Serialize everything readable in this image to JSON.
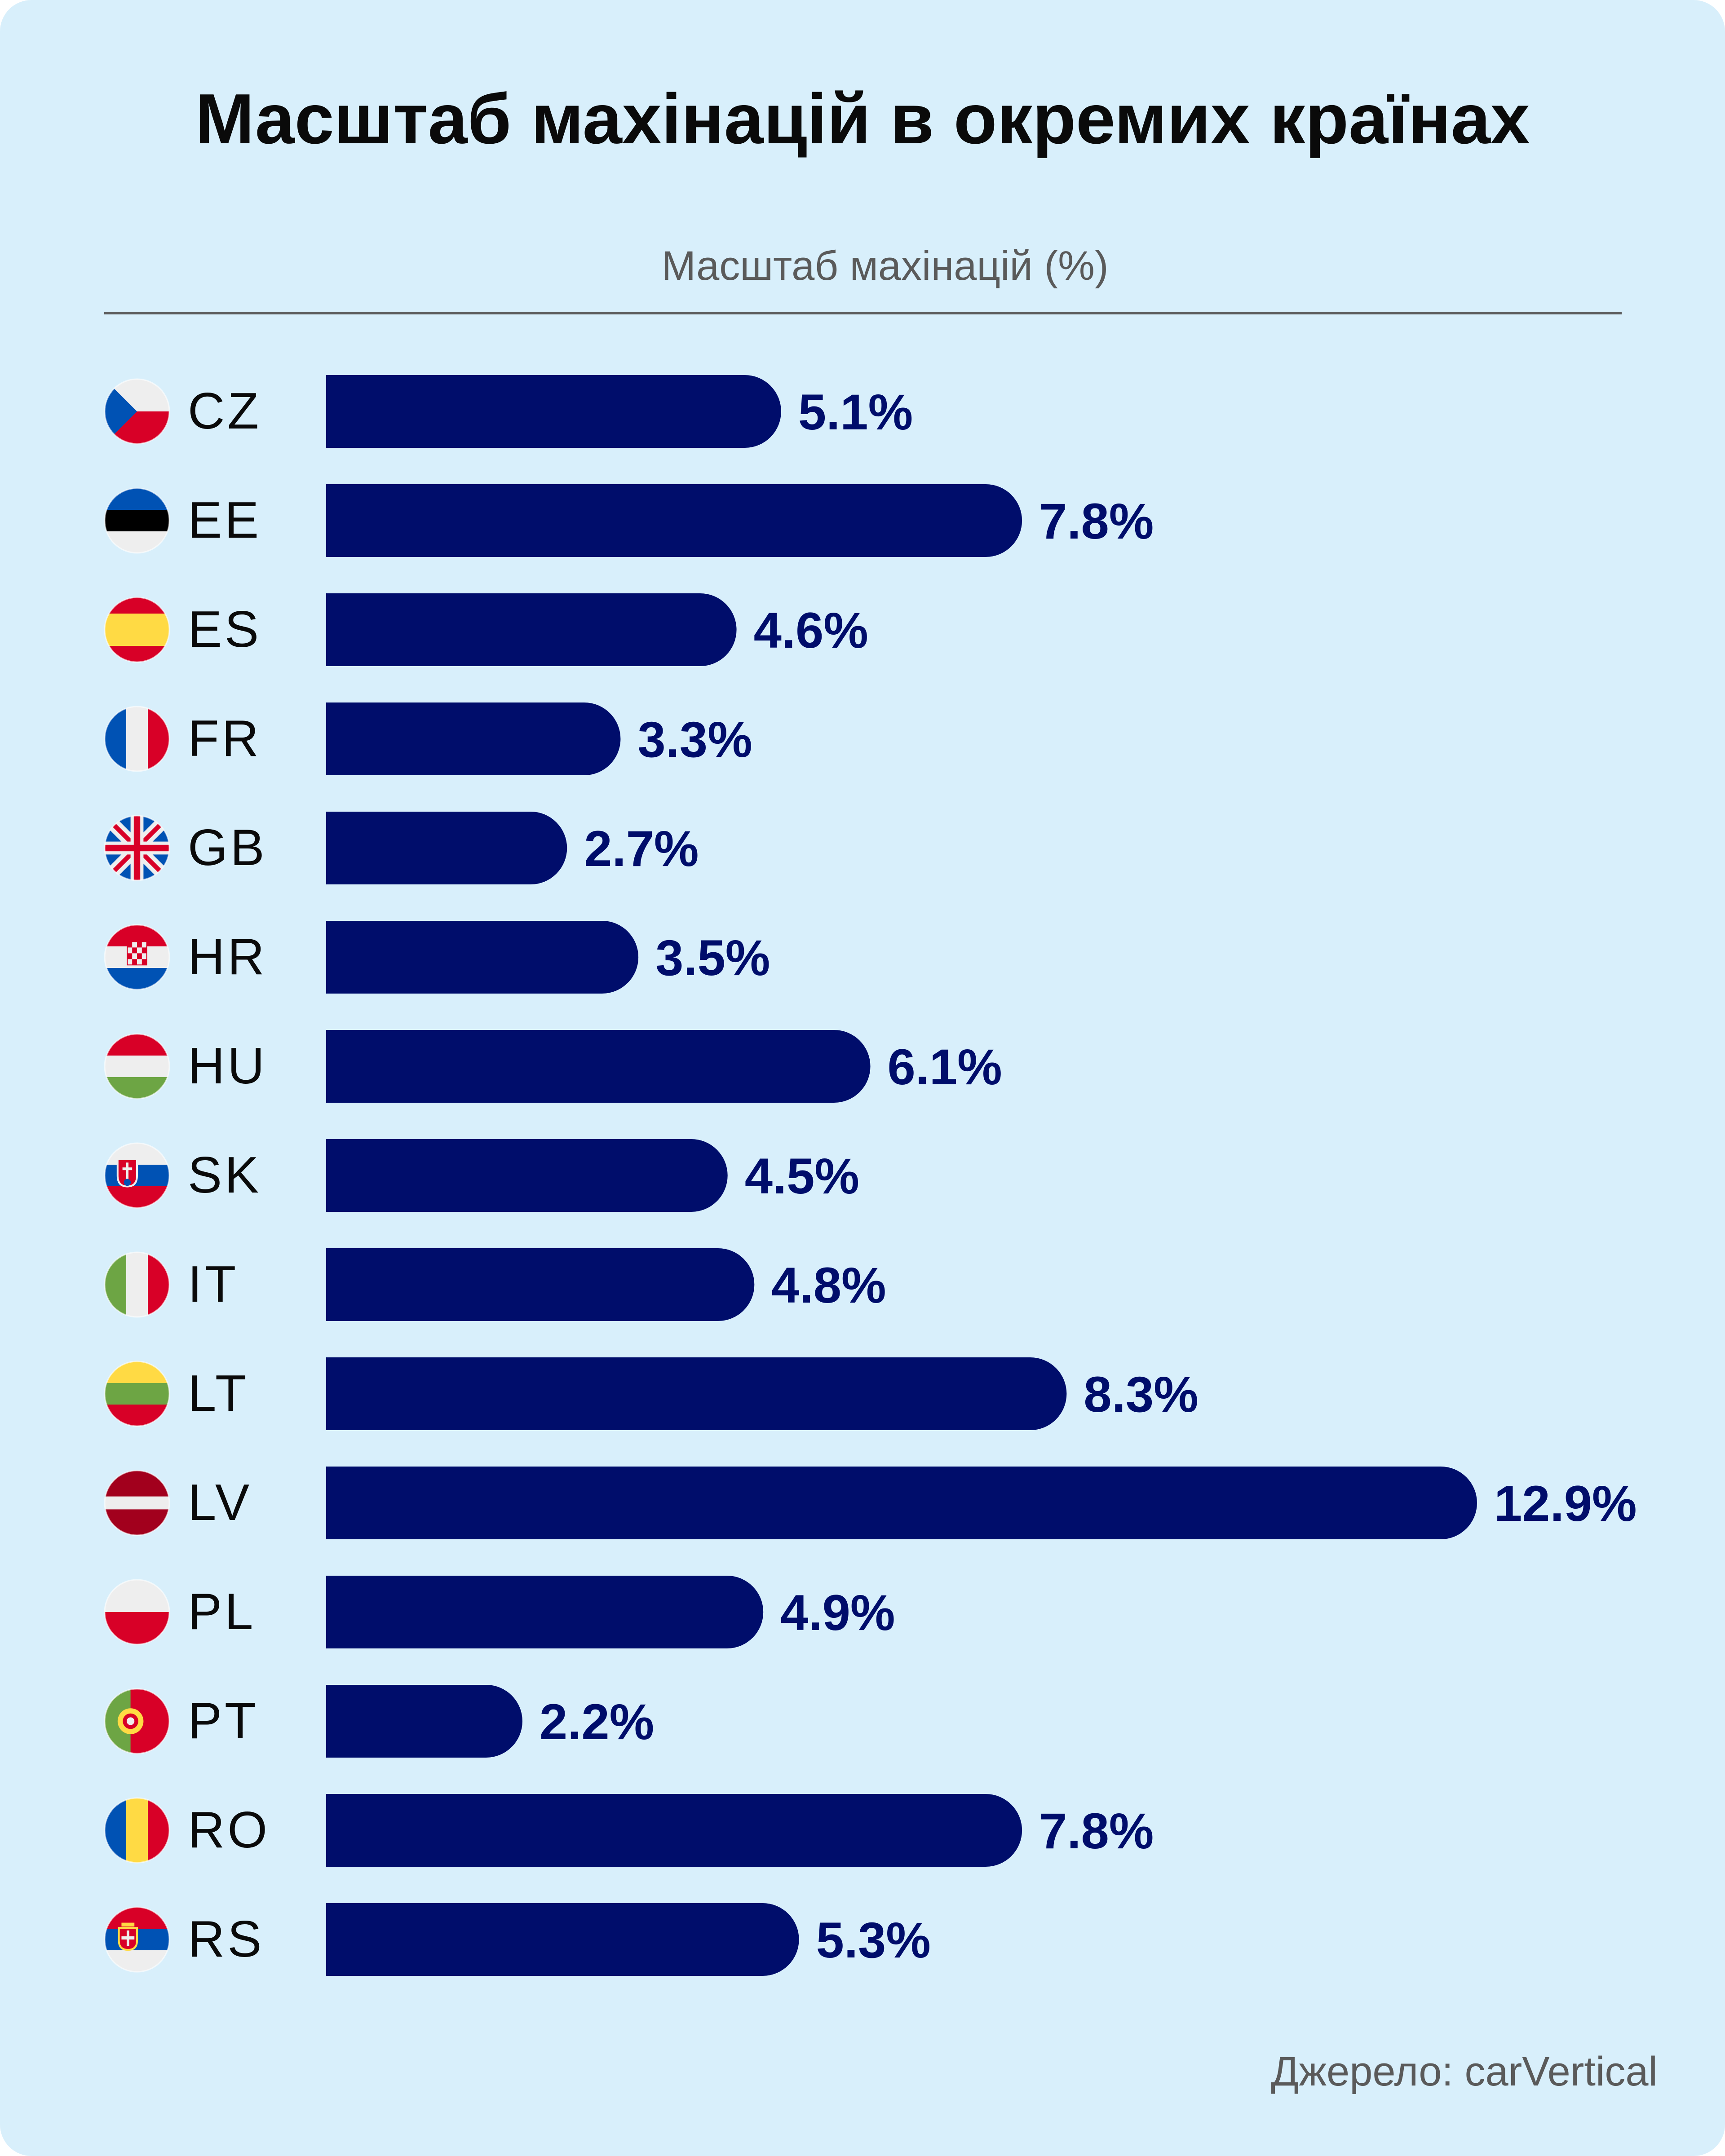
{
  "title": "Масштаб махінацій в окремих країнах",
  "source": "Джерело: carVertical",
  "chart_data": {
    "type": "bar",
    "orientation": "horizontal",
    "title": "Масштаб махінацій в окремих країнах",
    "xlabel": "Масштаб махінацій (%)",
    "ylabel": "",
    "categories": [
      "CZ",
      "EE",
      "ES",
      "FR",
      "GB",
      "HR",
      "HU",
      "SK",
      "IT",
      "LT",
      "LV",
      "PL",
      "PT",
      "RO",
      "RS"
    ],
    "values": [
      5.1,
      7.8,
      4.6,
      3.3,
      2.7,
      3.5,
      6.1,
      4.5,
      4.8,
      8.3,
      12.9,
      4.9,
      2.2,
      7.8,
      5.3
    ],
    "value_labels": [
      "5.1%",
      "7.8%",
      "4.6%",
      "3.3%",
      "2.7%",
      "3.5%",
      "6.1%",
      "4.5%",
      "4.8%",
      "8.3%",
      "12.9%",
      "4.9%",
      "2.2%",
      "7.8%",
      "5.3%"
    ],
    "xlim": [
      0,
      12.9
    ],
    "grid": false,
    "legend": "none",
    "bar_color": "#000d6b",
    "label_color": "#000d6b",
    "flags": [
      "cz-flag-icon",
      "ee-flag-icon",
      "es-flag-icon",
      "fr-flag-icon",
      "gb-flag-icon",
      "hr-flag-icon",
      "hu-flag-icon",
      "sk-flag-icon",
      "it-flag-icon",
      "lt-flag-icon",
      "lv-flag-icon",
      "pl-flag-icon",
      "pt-flag-icon",
      "ro-flag-icon",
      "rs-flag-icon"
    ]
  }
}
